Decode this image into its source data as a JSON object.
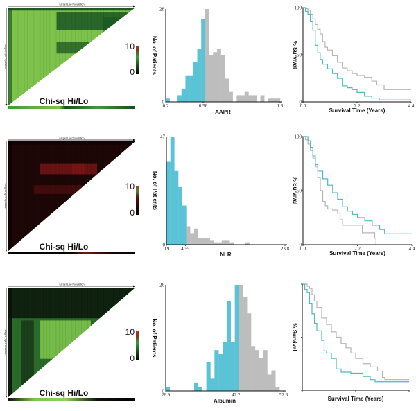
{
  "colors": {
    "low_group": "#5bc3d6",
    "high_group": "#bdbdbd",
    "survival_low": "#4fb8c4",
    "survival_high": "#b5b5b5"
  },
  "chart_data": [
    {
      "type": "heatmap",
      "kind": "x-tile",
      "top_label": "Larger Low Population",
      "side_label": "Larger High Population",
      "caption": "Chi-sq Hi/Lo",
      "colorbar": {
        "max_label": "10",
        "min_label": "0",
        "range": [
          0,
          10
        ]
      },
      "palette": {
        "base": "#7dc24b",
        "dark": "#14501f",
        "accent": "#3f9a3a"
      }
    },
    {
      "type": "bar",
      "kind": "histogram",
      "xlabel": "AAPR",
      "ylabel": "No. of Patients",
      "xlim": [
        0.2,
        1.3
      ],
      "ylim": [
        0,
        28
      ],
      "xticks": [
        "0.2",
        "0.56",
        "1.3"
      ],
      "yticks": [
        "0",
        "28"
      ],
      "cutpoint": 0.56,
      "counts": [
        1,
        0,
        0,
        2,
        4,
        8,
        8,
        12,
        16,
        25,
        28,
        14,
        15,
        16,
        14,
        7,
        3,
        0,
        2,
        2,
        3,
        2,
        2,
        0,
        2,
        0,
        1,
        1,
        1
      ]
    },
    {
      "type": "line",
      "kind": "kaplan-meier",
      "xlabel": "Survival Time (Years)",
      "ylabel": "% Survival",
      "xlim": [
        0,
        4.4
      ],
      "ylim": [
        0,
        100
      ],
      "xticks": [
        "0.0",
        "2.2",
        "4.4"
      ],
      "yticks": [
        "0",
        "50",
        "100"
      ],
      "series": [
        {
          "group": "high",
          "x": [
            0,
            0.1,
            0.2,
            0.3,
            0.4,
            0.5,
            0.6,
            0.7,
            0.8,
            0.9,
            1.0,
            1.2,
            1.4,
            1.6,
            1.8,
            2.0,
            2.2,
            2.5,
            2.8,
            3.0,
            3.3,
            4.4
          ],
          "y": [
            100,
            99,
            97,
            93,
            88,
            82,
            77,
            72,
            64,
            58,
            55,
            49,
            42,
            36,
            33,
            30,
            28,
            26,
            22,
            18,
            13,
            13
          ]
        },
        {
          "group": "low",
          "x": [
            0,
            0.1,
            0.2,
            0.3,
            0.4,
            0.5,
            0.6,
            0.7,
            0.8,
            1.0,
            1.2,
            1.4,
            1.6,
            1.8,
            2.0,
            2.2,
            2.5,
            2.8,
            3.1,
            4.4
          ],
          "y": [
            100,
            96,
            93,
            85,
            76,
            60,
            52,
            45,
            40,
            35,
            30,
            25,
            17,
            15,
            13,
            10,
            6,
            4,
            2,
            2
          ]
        }
      ]
    },
    {
      "type": "heatmap",
      "kind": "x-tile",
      "top_label": "Larger Low Population",
      "side_label": "Larger High Population",
      "caption": "Chi-sq Hi/Lo",
      "colorbar": {
        "max_label": "10",
        "min_label": "0",
        "range": [
          0,
          10
        ]
      },
      "palette": {
        "base": "#1c0606",
        "dark": "#070202",
        "accent": "#7a1616"
      }
    },
    {
      "type": "bar",
      "kind": "histogram",
      "xlabel": "NLR",
      "ylabel": "No. of Patients",
      "xlim": [
        0.9,
        23.8
      ],
      "ylim": [
        0,
        47
      ],
      "xticks": [
        "0.9",
        "4.55",
        "23.8"
      ],
      "yticks": [
        "0",
        "47"
      ],
      "cutpoint": 4.55,
      "counts": [
        36,
        47,
        32,
        25,
        17,
        8,
        5,
        7,
        3,
        3,
        3,
        2,
        1,
        1,
        2,
        2,
        1,
        0,
        0,
        0,
        1,
        0,
        0,
        0,
        0,
        0,
        0,
        0,
        0,
        0
      ]
    },
    {
      "type": "line",
      "kind": "kaplan-meier",
      "xlabel": "Survival Time (Years)",
      "ylabel": "% Survival",
      "xlim": [
        0,
        4.4
      ],
      "ylim": [
        0,
        100
      ],
      "xticks": [
        "0.0",
        "2.2",
        "4.4"
      ],
      "yticks": [
        "0",
        "50",
        "100"
      ],
      "series": [
        {
          "group": "high",
          "x": [
            0,
            0.1,
            0.2,
            0.3,
            0.4,
            0.5,
            0.6,
            0.7,
            0.8,
            0.9,
            1.0,
            1.2,
            1.4,
            1.5,
            1.6,
            2.3,
            2.4,
            2.7,
            2.9,
            2.95
          ],
          "y": [
            100,
            97,
            93,
            87,
            80,
            72,
            62,
            50,
            40,
            36,
            33,
            32,
            29,
            23,
            18,
            18,
            11,
            11,
            6,
            0
          ]
        },
        {
          "group": "low",
          "x": [
            0,
            0.2,
            0.3,
            0.4,
            0.5,
            0.6,
            0.8,
            1.0,
            1.2,
            1.4,
            1.6,
            1.8,
            2.0,
            2.2,
            2.5,
            2.8,
            3.1,
            3.3,
            4.4
          ],
          "y": [
            100,
            96,
            90,
            82,
            74,
            68,
            61,
            55,
            48,
            42,
            35,
            31,
            28,
            25,
            22,
            18,
            14,
            10,
            10
          ]
        }
      ]
    },
    {
      "type": "heatmap",
      "kind": "x-tile",
      "top_label": "Larger Low Population",
      "side_label": "Larger High Population",
      "caption": "Chi-sq Hi/Lo",
      "colorbar": {
        "max_label": "10",
        "min_label": "0",
        "range": [
          0,
          10
        ]
      },
      "palette": {
        "base": "#2a6a2a",
        "dark": "#0a140a",
        "accent": "#7cc44c"
      }
    },
    {
      "type": "bar",
      "kind": "histogram",
      "xlabel": "Albumin",
      "ylabel": "No. of Patients",
      "xlim": [
        26.9,
        52.6
      ],
      "ylim": [
        0,
        26
      ],
      "xticks": [
        "26.9",
        "42.2",
        "52.6"
      ],
      "yticks": [
        "0",
        "26"
      ],
      "cutpoint": 42.2,
      "counts": [
        1,
        0,
        0,
        0,
        0,
        0,
        0,
        2,
        1,
        0,
        7,
        3,
        10,
        9,
        12,
        22,
        12,
        26,
        26,
        23,
        19,
        11,
        10,
        8,
        10,
        4,
        5,
        1,
        0
      ]
    },
    {
      "type": "line",
      "kind": "kaplan-meier",
      "xlabel": "Survival Time (Years)",
      "ylabel": "% Survival",
      "xlim": [
        0,
        4.4
      ],
      "ylim": [
        0,
        100
      ],
      "xticks": [],
      "yticks": [],
      "series": [
        {
          "group": "high",
          "x": [
            0,
            0.2,
            0.3,
            0.4,
            0.5,
            0.6,
            0.8,
            1.0,
            1.2,
            1.4,
            1.6,
            1.8,
            2.0,
            2.2,
            2.5,
            2.8,
            3.1,
            3.3,
            3.4,
            4.4
          ],
          "y": [
            100,
            98,
            96,
            90,
            84,
            78,
            68,
            62,
            55,
            50,
            44,
            40,
            35,
            30,
            25,
            22,
            18,
            12,
            10,
            10
          ]
        },
        {
          "group": "low",
          "x": [
            0,
            0.1,
            0.2,
            0.3,
            0.4,
            0.5,
            0.6,
            0.8,
            0.9,
            1.0,
            1.2,
            1.4,
            1.6,
            1.8,
            2.0,
            2.2,
            2.5,
            2.8,
            3.0,
            4.4
          ],
          "y": [
            100,
            95,
            92,
            82,
            72,
            63,
            56,
            47,
            37,
            35,
            30,
            20,
            17,
            17,
            16,
            16,
            13,
            10,
            8,
            8
          ]
        }
      ]
    }
  ]
}
